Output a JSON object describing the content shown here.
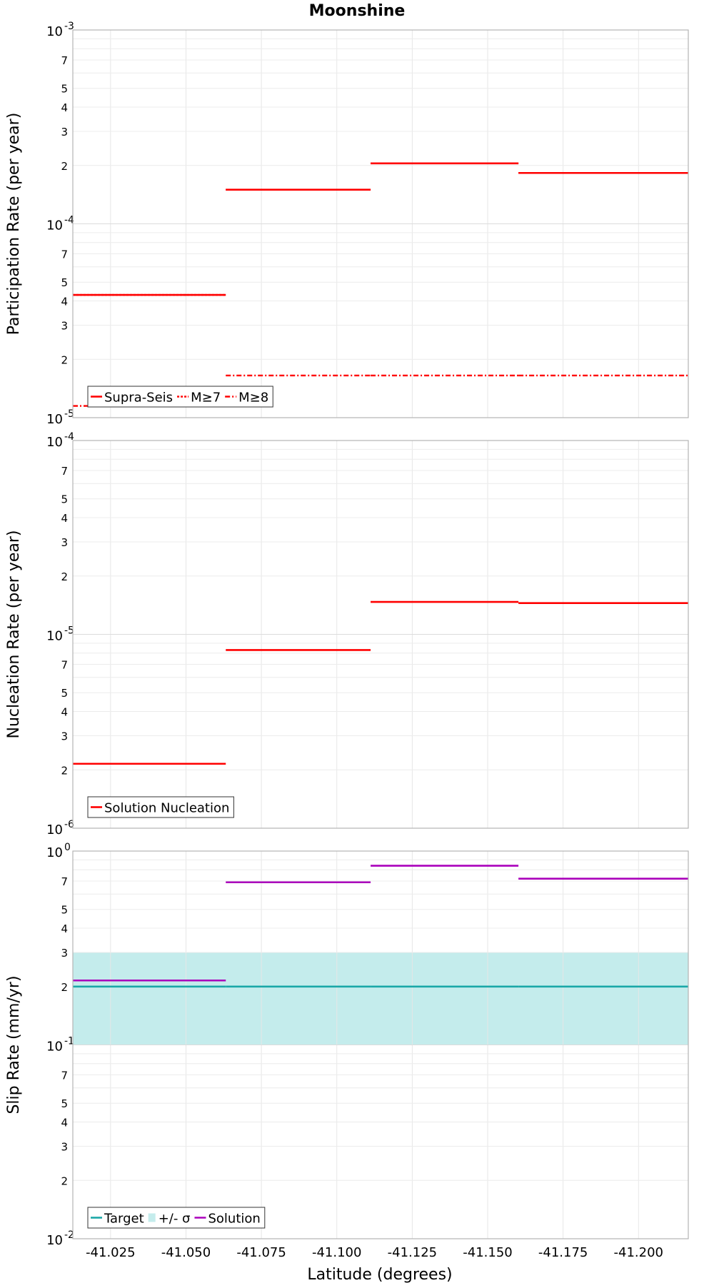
{
  "title": "Moonshine",
  "x_axis": {
    "label": "Latitude (degrees)",
    "ticks": [
      -41.025,
      -41.05,
      -41.075,
      -41.1,
      -41.125,
      -41.15,
      -41.175,
      -41.2
    ],
    "tick_labels": [
      "-41.025",
      "-41.050",
      "-41.075",
      "-41.100",
      "-41.125",
      "-41.150",
      "-41.175",
      "-41.200"
    ],
    "range": [
      -41.0125,
      -41.2165
    ]
  },
  "chart_data": [
    {
      "type": "line",
      "step": true,
      "ylabel": "Participation Rate (per year)",
      "yscale": "log",
      "ylim": [
        1e-05,
        0.001
      ],
      "grid": true,
      "legend_position": "bottom-left",
      "segments_x": [
        [
          -41.0125,
          -41.0632
        ],
        [
          -41.0632,
          -41.1112
        ],
        [
          -41.1112,
          -41.1602
        ],
        [
          -41.1602,
          -41.2165
        ]
      ],
      "series": [
        {
          "name": "Supra-Seis",
          "style": "solid",
          "color": "#ff0000",
          "values": [
            4.3e-05,
            0.00015,
            0.000205,
            0.000183
          ]
        },
        {
          "name": "M≥7",
          "style": "dotted",
          "color": "#ff0000",
          "values": [
            4.3e-05,
            0.00015,
            0.000205,
            0.000183
          ]
        },
        {
          "name": "M≥8",
          "style": "dashdot",
          "color": "#ff0000",
          "values": [
            1.15e-05,
            1.65e-05,
            1.65e-05,
            1.65e-05
          ]
        }
      ],
      "y_ticks": [
        {
          "base": "10",
          "exp": "-5"
        },
        {
          "base": "10",
          "exp": "-4"
        },
        {
          "base": "10",
          "exp": "-3"
        }
      ],
      "y_minor_labels": [
        "2",
        "3",
        "4",
        "5",
        "7"
      ]
    },
    {
      "type": "line",
      "step": true,
      "ylabel": "Nucleation Rate (per year)",
      "yscale": "log",
      "ylim": [
        1e-06,
        0.0001
      ],
      "grid": true,
      "legend_position": "bottom-left",
      "segments_x": [
        [
          -41.0125,
          -41.0632
        ],
        [
          -41.0632,
          -41.1112
        ],
        [
          -41.1112,
          -41.1602
        ],
        [
          -41.1602,
          -41.2165
        ]
      ],
      "series": [
        {
          "name": "Solution Nucleation",
          "style": "solid",
          "color": "#ff0000",
          "values": [
            2.15e-06,
            8.3e-06,
            1.47e-05,
            1.45e-05
          ]
        }
      ],
      "y_ticks": [
        {
          "base": "10",
          "exp": "-6"
        },
        {
          "base": "10",
          "exp": "-5"
        },
        {
          "base": "10",
          "exp": "-4"
        }
      ],
      "y_minor_labels": [
        "2",
        "3",
        "4",
        "5",
        "7"
      ]
    },
    {
      "type": "line",
      "step": true,
      "ylabel": "Slip Rate (mm/yr)",
      "yscale": "log",
      "ylim": [
        0.01,
        1
      ],
      "grid": true,
      "legend_position": "bottom-left",
      "segments_x": [
        [
          -41.0125,
          -41.0632
        ],
        [
          -41.0632,
          -41.1112
        ],
        [
          -41.1112,
          -41.1602
        ],
        [
          -41.1602,
          -41.2165
        ]
      ],
      "band": {
        "name": "+/- σ",
        "color": "#c4ecec",
        "lower": 0.1,
        "upper": 0.3
      },
      "series": [
        {
          "name": "Target",
          "style": "solid",
          "color": "#1aa7a7",
          "values": [
            0.2,
            0.2,
            0.2,
            0.2
          ]
        },
        {
          "name": "Solution",
          "style": "solid",
          "color": "#aa00bb",
          "values": [
            0.215,
            0.69,
            0.84,
            0.72
          ]
        }
      ],
      "legend_order": [
        "Target",
        "+/- σ",
        "Solution"
      ],
      "y_ticks": [
        {
          "base": "10",
          "exp": "-2"
        },
        {
          "base": "10",
          "exp": "-1"
        },
        {
          "base": "10",
          "exp": "0"
        }
      ],
      "y_minor_labels": [
        "2",
        "3",
        "4",
        "5",
        "7"
      ]
    }
  ]
}
